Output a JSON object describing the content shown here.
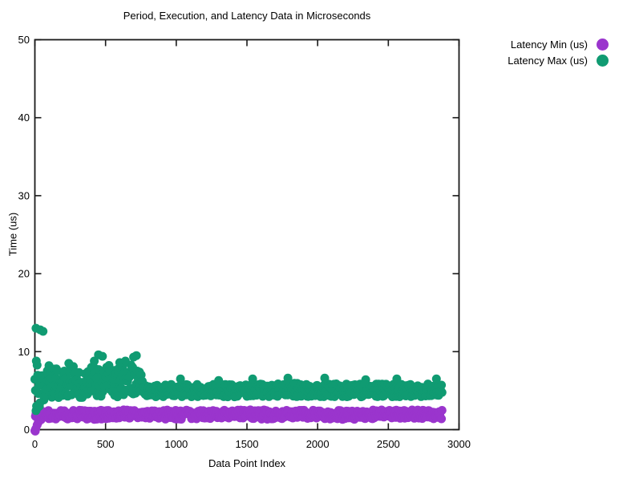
{
  "chart_data": {
    "type": "scatter",
    "title": "Period, Execution, and Latency Data in Microseconds",
    "xlabel": "Data Point Index",
    "ylabel": "Time (us)",
    "xlim": [
      0,
      3000
    ],
    "ylim": [
      0,
      50
    ],
    "x_ticks": [
      0,
      500,
      1000,
      1500,
      2000,
      2500,
      3000
    ],
    "x_tick_labels": [
      "0",
      "500",
      "1000",
      "1500",
      "2000",
      "2500",
      "3000"
    ],
    "y_ticks": [
      0,
      10,
      20,
      30,
      40,
      50
    ],
    "y_tick_labels": [
      "0",
      "10",
      "20",
      "30",
      "40",
      "50"
    ],
    "grid": false,
    "legend_position": "outside-top-right",
    "marker": {
      "shape": "filled-circle",
      "radius_px": 5.5
    },
    "series": [
      {
        "name": "Latency Min (us)",
        "color": "#9a35cd",
        "x_start": 0,
        "x_end": 2880,
        "band_keypoints": [
          [
            0,
            -0.2,
            2.6
          ],
          [
            12,
            0.2,
            2.6
          ],
          [
            40,
            1.2,
            2.6
          ],
          [
            100,
            1.35,
            2.5
          ],
          [
            400,
            1.3,
            2.5
          ],
          [
            700,
            1.45,
            2.55
          ],
          [
            1000,
            1.3,
            2.5
          ],
          [
            1300,
            1.45,
            2.5
          ],
          [
            1600,
            1.3,
            2.55
          ],
          [
            1900,
            1.45,
            2.5
          ],
          [
            2200,
            1.3,
            2.5
          ],
          [
            2500,
            1.45,
            2.55
          ],
          [
            2880,
            1.35,
            2.5
          ]
        ],
        "outliers": [
          [
            3,
            -0.2
          ],
          [
            6,
            0.1
          ]
        ]
      },
      {
        "name": "Latency Max (us)",
        "color": "#109b72",
        "x_start": 0,
        "x_end": 2880,
        "band_keypoints": [
          [
            0,
            2.0,
            8.8
          ],
          [
            20,
            2.0,
            8.6
          ],
          [
            50,
            2.6,
            8.2
          ],
          [
            80,
            4.0,
            8.3
          ],
          [
            150,
            4.1,
            8.1
          ],
          [
            220,
            4.1,
            8.4
          ],
          [
            300,
            4.1,
            8.2
          ],
          [
            360,
            4.1,
            7.9
          ],
          [
            430,
            4.2,
            8.7
          ],
          [
            470,
            4.2,
            9.0
          ],
          [
            520,
            4.2,
            8.3
          ],
          [
            580,
            4.2,
            8.4
          ],
          [
            640,
            4.2,
            8.7
          ],
          [
            700,
            4.3,
            9.1
          ],
          [
            750,
            4.3,
            8.5
          ],
          [
            768,
            4.3,
            5.9
          ],
          [
            850,
            4.2,
            5.7
          ],
          [
            950,
            4.2,
            5.9
          ],
          [
            1060,
            4.2,
            5.8
          ],
          [
            1200,
            4.2,
            5.9
          ],
          [
            1350,
            4.2,
            5.8
          ],
          [
            1500,
            4.2,
            6.0
          ],
          [
            1650,
            4.2,
            5.8
          ],
          [
            1800,
            4.2,
            6.0
          ],
          [
            1950,
            4.2,
            5.8
          ],
          [
            2100,
            4.2,
            5.9
          ],
          [
            2250,
            4.2,
            5.8
          ],
          [
            2400,
            4.2,
            5.9
          ],
          [
            2550,
            4.2,
            5.9
          ],
          [
            2700,
            4.2,
            5.8
          ],
          [
            2880,
            4.2,
            6.0
          ]
        ],
        "outliers": [
          [
            8,
            13.0
          ],
          [
            38,
            12.8
          ],
          [
            58,
            12.6
          ],
          [
            10,
            8.8
          ],
          [
            240,
            8.5
          ],
          [
            420,
            8.8
          ],
          [
            450,
            9.6
          ],
          [
            478,
            9.4
          ],
          [
            600,
            8.6
          ],
          [
            640,
            8.8
          ],
          [
            698,
            9.3
          ],
          [
            718,
            9.5
          ],
          [
            1030,
            6.5
          ],
          [
            1300,
            6.3
          ],
          [
            1540,
            6.5
          ],
          [
            1790,
            6.6
          ],
          [
            2050,
            6.6
          ],
          [
            2340,
            6.4
          ],
          [
            2560,
            6.5
          ],
          [
            2840,
            6.5
          ]
        ]
      }
    ]
  }
}
